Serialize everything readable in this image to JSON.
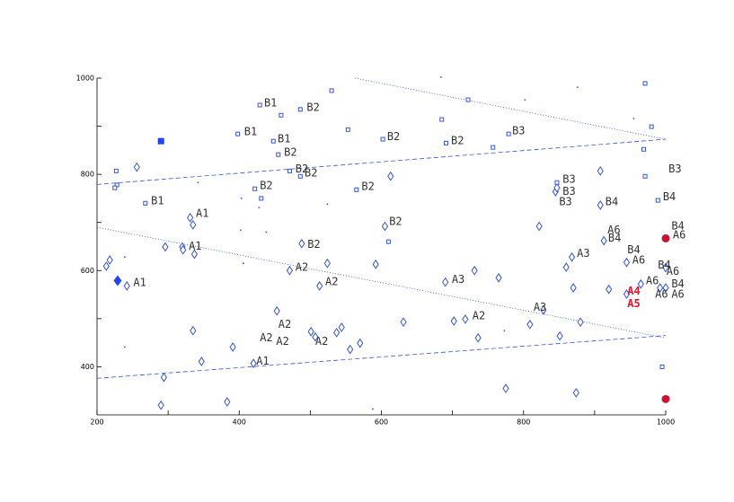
{
  "chart_data": {
    "type": "scatter",
    "xlim": [
      200,
      1000
    ],
    "ylim": [
      300,
      1000
    ],
    "xticks": [
      200,
      400,
      600,
      800,
      1000
    ],
    "xminor": [
      300,
      500,
      700,
      900
    ],
    "yticks": [
      400,
      600,
      800,
      1000
    ],
    "yminor": [
      500,
      700,
      900
    ],
    "series": [
      {
        "marker": "diamond",
        "color": "#3355dd",
        "x": [
          256,
          213,
          218,
          242,
          296,
          331,
          335,
          320,
          321,
          337,
          335,
          347,
          294,
          290,
          383,
          391,
          420,
          453,
          471,
          488,
          524,
          513,
          507,
          501,
          537,
          544,
          556,
          570,
          592,
          605,
          631,
          702,
          718,
          731,
          736,
          765,
          690,
          775,
          809,
          828,
          851,
          860,
          868,
          870,
          880,
          908,
          908,
          913,
          920,
          945,
          945,
          965,
          1000,
          992,
          1000,
          874,
          845,
          847,
          822,
          613
        ],
        "values": [
          815,
          609,
          622,
          568,
          649,
          710,
          695,
          649,
          643,
          634,
          475,
          411,
          378,
          320,
          327,
          441,
          407,
          516,
          600,
          656,
          615,
          568,
          462,
          473,
          471,
          482,
          436,
          449,
          613,
          692,
          493,
          495,
          499,
          600,
          460,
          585,
          576,
          355,
          488,
          518,
          464,
          607,
          628,
          564,
          493,
          807,
          736,
          662,
          561,
          617,
          551,
          572,
          606,
          564,
          564,
          346,
          764,
          772,
          692,
          796
        ]
      },
      {
        "marker": "square",
        "color": "#3355dd",
        "x": [
          227,
          228,
          225,
          268,
          398,
          429,
          459,
          448,
          455,
          486,
          471,
          486,
          530,
          553,
          565,
          602,
          610,
          422,
          431,
          685,
          691,
          722,
          757,
          779,
          847,
          971,
          980,
          969,
          971,
          989,
          995
        ],
        "values": [
          807,
          778,
          772,
          740,
          884,
          944,
          923,
          869,
          841,
          935,
          807,
          796,
          974,
          893,
          768,
          873,
          660,
          770,
          750,
          914,
          865,
          955,
          856,
          884,
          783,
          989,
          899,
          852,
          796,
          746,
          400
        ]
      },
      {
        "marker": "dot",
        "color": "#3355dd",
        "x": [
          684,
          802,
          876,
          955,
          342,
          403,
          428,
          438,
          402,
          406,
          524,
          239,
          239,
          588,
          773
        ],
        "values": [
          1002,
          955,
          981,
          916,
          783,
          750,
          731,
          680,
          684,
          615,
          738,
          628,
          441,
          312,
          475
        ]
      },
      {
        "marker": "filled-square",
        "color": "#2244ee",
        "x": [
          290
        ],
        "values": [
          869
        ]
      },
      {
        "marker": "filled-diamond",
        "color": "#2244ee",
        "x": [
          229
        ],
        "values": [
          579
        ]
      },
      {
        "marker": "circle",
        "color": "#cc1133",
        "x": [
          1000,
          1000
        ],
        "values": [
          667,
          333
        ]
      }
    ],
    "lines": [
      {
        "style": "dashed",
        "color": "#3355dd",
        "x": [
          200,
          1000
        ],
        "values": [
          779,
          873
        ]
      },
      {
        "style": "dashed",
        "color": "#3355dd",
        "x": [
          200,
          1000
        ],
        "values": [
          376,
          465
        ]
      },
      {
        "style": "dotted",
        "color": "#3355dd",
        "x": [
          563,
          1000
        ],
        "values": [
          1000,
          873
        ]
      },
      {
        "style": "dotted",
        "color": "#3355dd",
        "x": [
          200,
          1000
        ],
        "values": [
          690,
          460
        ]
      }
    ],
    "annotation_color": "#333333",
    "annotations": [
      {
        "text": "B1",
        "x": 435,
        "y": 948
      },
      {
        "text": "B2",
        "x": 495,
        "y": 938
      },
      {
        "text": "B1",
        "x": 407,
        "y": 888
      },
      {
        "text": "B1",
        "x": 454,
        "y": 873
      },
      {
        "text": "B2",
        "x": 463,
        "y": 845
      },
      {
        "text": "B2",
        "x": 479,
        "y": 811
      },
      {
        "text": "B2",
        "x": 492,
        "y": 802
      },
      {
        "text": "B2",
        "x": 429,
        "y": 776
      },
      {
        "text": "B2",
        "x": 572,
        "y": 774
      },
      {
        "text": "B1",
        "x": 276,
        "y": 744
      },
      {
        "text": "B2",
        "x": 608,
        "y": 878
      },
      {
        "text": "B2",
        "x": 698,
        "y": 869
      },
      {
        "text": "B3",
        "x": 784,
        "y": 890
      },
      {
        "text": "B3",
        "x": 855,
        "y": 789
      },
      {
        "text": "B3",
        "x": 855,
        "y": 764
      },
      {
        "text": "B3",
        "x": 850,
        "y": 742
      },
      {
        "text": "B4",
        "x": 915,
        "y": 742
      },
      {
        "text": "B3",
        "x": 1004,
        "y": 811
      },
      {
        "text": "B4",
        "x": 996,
        "y": 753
      },
      {
        "text": "B2",
        "x": 611,
        "y": 701
      },
      {
        "text": "B2",
        "x": 496,
        "y": 654
      },
      {
        "text": "A1",
        "x": 339,
        "y": 718
      },
      {
        "text": "A1",
        "x": 329,
        "y": 650
      },
      {
        "text": "A1",
        "x": 251,
        "y": 574
      },
      {
        "text": "A2",
        "x": 479,
        "y": 606
      },
      {
        "text": "A2",
        "x": 521,
        "y": 576
      },
      {
        "text": "A3",
        "x": 699,
        "y": 581
      },
      {
        "text": "A3",
        "x": 875,
        "y": 635
      },
      {
        "text": "A3",
        "x": 814,
        "y": 523
      },
      {
        "text": "A2",
        "x": 728,
        "y": 505
      },
      {
        "text": "A2",
        "x": 455,
        "y": 488
      },
      {
        "text": "A2",
        "x": 429,
        "y": 460
      },
      {
        "text": "A2",
        "x": 452,
        "y": 452
      },
      {
        "text": "A2",
        "x": 507,
        "y": 452
      },
      {
        "text": "A1",
        "x": 424,
        "y": 411
      },
      {
        "text": "A6",
        "x": 918,
        "y": 684
      },
      {
        "text": "B4",
        "x": 919,
        "y": 667
      },
      {
        "text": "B4",
        "x": 946,
        "y": 643
      },
      {
        "text": "A6",
        "x": 953,
        "y": 621
      },
      {
        "text": "B4",
        "x": 989,
        "y": 611
      },
      {
        "text": "A6",
        "x": 1001,
        "y": 598
      },
      {
        "text": "A6",
        "x": 972,
        "y": 578
      },
      {
        "text": "B4",
        "x": 1008,
        "y": 572
      },
      {
        "text": "A6",
        "x": 985,
        "y": 550
      },
      {
        "text": "A6",
        "x": 1008,
        "y": 550
      },
      {
        "text": "B4",
        "x": 1008,
        "y": 692
      },
      {
        "text": "A6",
        "x": 1010,
        "y": 673
      },
      {
        "text": "A4",
        "x": 946,
        "y": 557,
        "color": "#e8132a"
      },
      {
        "text": "A5",
        "x": 946,
        "y": 531,
        "color": "#e8132a"
      }
    ]
  }
}
